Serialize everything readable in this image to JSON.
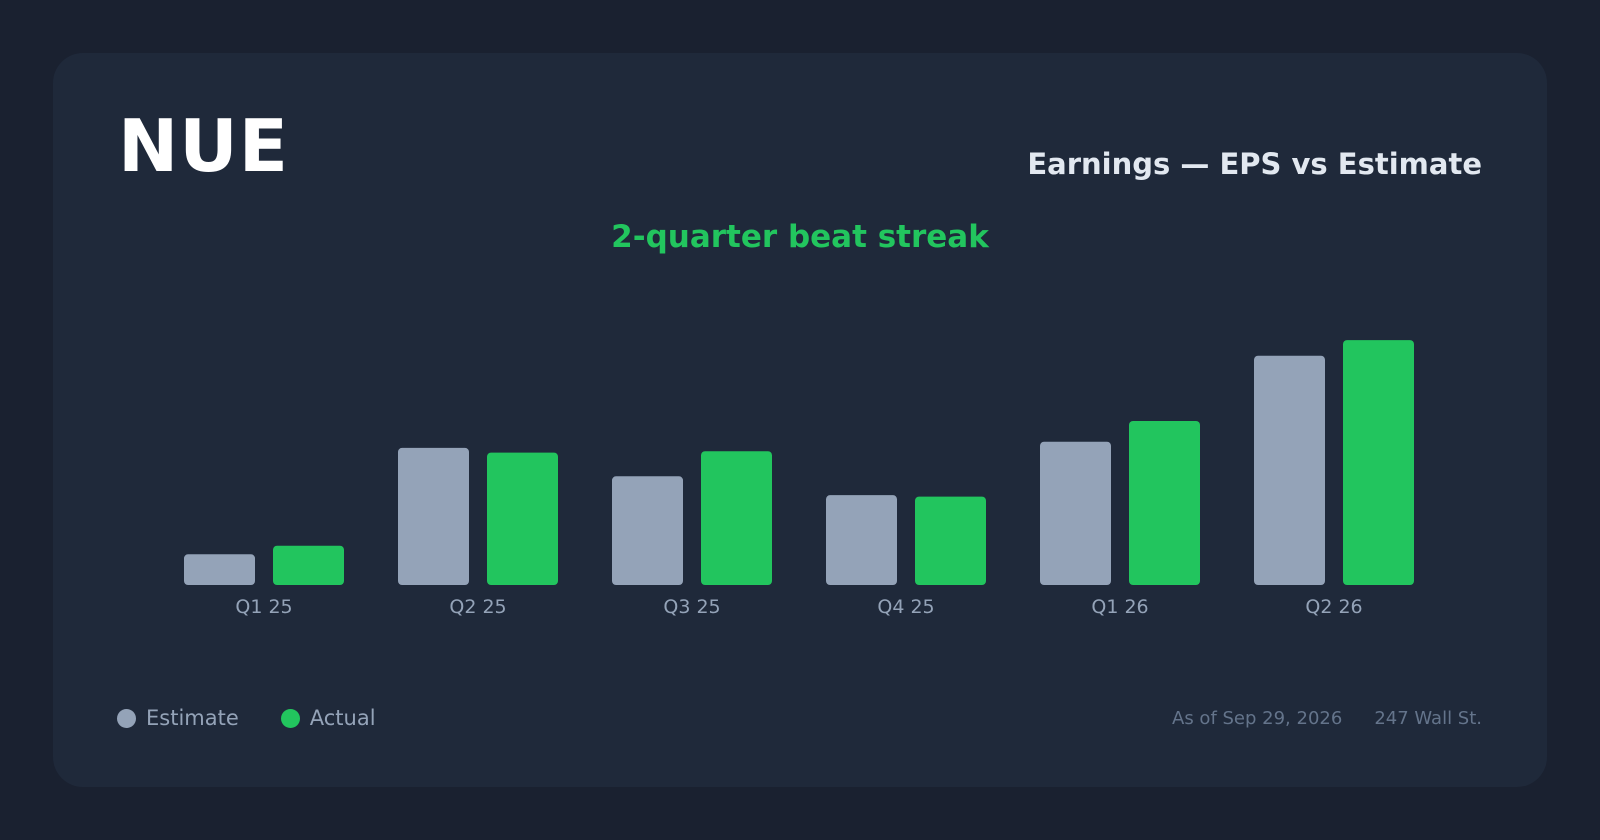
{
  "ticker": "NUE",
  "title": "Earnings — EPS vs Estimate",
  "subtitle": "2-quarter beat streak",
  "legend": {
    "estimate": "Estimate",
    "actual": "Actual"
  },
  "footer": {
    "as_of": "As of Sep 29, 2026",
    "source": "247 Wall St."
  },
  "colors": {
    "estimate": "#94a3b8",
    "actual": "#22c55e",
    "background": "#1f293a"
  },
  "chart_data": {
    "type": "bar",
    "categories": [
      "Q1 25",
      "Q2 25",
      "Q3 25",
      "Q4 25",
      "Q1 26",
      "Q2 26"
    ],
    "series": [
      {
        "name": "Estimate",
        "values": [
          0.65,
          2.9,
          2.3,
          1.9,
          3.03,
          4.85
        ]
      },
      {
        "name": "Actual",
        "values": [
          0.83,
          2.8,
          2.83,
          1.87,
          3.47,
          5.18
        ]
      }
    ],
    "ylim": [
      0,
      5.5
    ]
  }
}
